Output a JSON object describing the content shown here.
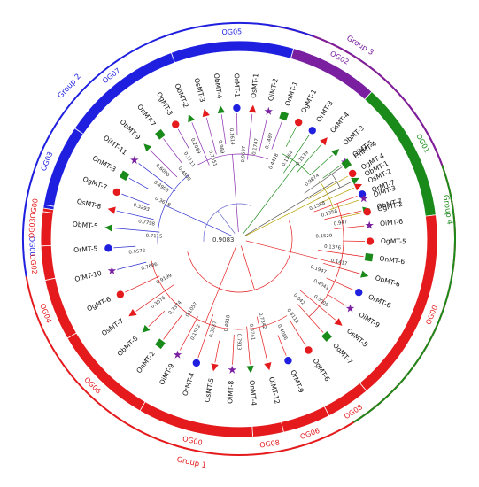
{
  "groups": [
    {
      "label": "Group 1",
      "color": "#e41a1c"
    },
    {
      "label": "Group 2",
      "color": "#1f1fe0"
    },
    {
      "label": "Group 3",
      "color": "#7a1fa0"
    },
    {
      "label": "Group 4",
      "color": "#1a8a1a"
    }
  ],
  "og_bands": [
    {
      "label": "OG00",
      "color": "#1f1fe0"
    },
    {
      "label": "OG03",
      "color": "#1f1fe0"
    },
    {
      "label": "OG07",
      "color": "#1f1fe0"
    },
    {
      "label": "OG05",
      "color": "#1f1fe0"
    },
    {
      "label": "OG02",
      "color": "#7a1fa0"
    },
    {
      "label": "OG01",
      "color": "#1a8a1a"
    },
    {
      "label": "OG00",
      "color": "#e41a1c"
    },
    {
      "label": "OG08",
      "color": "#e41a1c"
    },
    {
      "label": "OG06",
      "color": "#e41a1c"
    },
    {
      "label": "OG08",
      "color": "#e41a1c"
    },
    {
      "label": "OG00",
      "color": "#e41a1c"
    },
    {
      "label": "OG06",
      "color": "#e41a1c"
    },
    {
      "label": "OG04",
      "color": "#e41a1c"
    },
    {
      "label": "OG02",
      "color": "#e41a1c"
    },
    {
      "label": "OG03",
      "color": "#e41a1c"
    },
    {
      "label": "OG00",
      "color": "#e41a1c"
    }
  ],
  "leaves": [
    {
      "name": "OrMT-7",
      "symbol": "circle",
      "color": "#1f1fe0"
    },
    {
      "name": "ObMT-7",
      "symbol": "triangle",
      "color": "#1a8a1a"
    },
    {
      "name": "OiMT-6",
      "symbol": "star",
      "color": "#7a1fa0"
    },
    {
      "name": "OgMT-5",
      "symbol": "circle",
      "color": "#e41a1c"
    },
    {
      "name": "OnMT-6",
      "symbol": "square",
      "color": "#1a8a1a"
    },
    {
      "name": "ObMT-6",
      "symbol": "triangle",
      "color": "#1a8a1a"
    },
    {
      "name": "OrMT-6",
      "symbol": "circle",
      "color": "#1f1fe0"
    },
    {
      "name": "OiMT-9",
      "symbol": "star",
      "color": "#7a1fa0"
    },
    {
      "name": "OsMT-5",
      "symbol": "triangle",
      "color": "#e41a1c"
    },
    {
      "name": "OgMT-7",
      "symbol": "square",
      "color": "#1a8a1a"
    },
    {
      "name": "OgMT-6",
      "symbol": "circle",
      "color": "#e41a1c"
    },
    {
      "name": "OrMT-9",
      "symbol": "circle",
      "color": "#1f1fe0"
    },
    {
      "name": "OiMT-12",
      "symbol": "triangle",
      "color": "#e41a1c"
    },
    {
      "name": "OnMT-4",
      "symbol": "triangle",
      "color": "#1a8a1a"
    },
    {
      "name": "OiMT-8",
      "symbol": "star",
      "color": "#7a1fa0"
    },
    {
      "name": "OsMT-5",
      "symbol": "triangle",
      "color": "#e41a1c"
    },
    {
      "name": "OrMT-4",
      "symbol": "circle",
      "color": "#1f1fe0"
    },
    {
      "name": "OiMT-9",
      "symbol": "star",
      "color": "#7a1fa0"
    },
    {
      "name": "OnMT-2",
      "symbol": "square",
      "color": "#1a8a1a"
    },
    {
      "name": "ObMT-8",
      "symbol": "triangle",
      "color": "#1a8a1a"
    },
    {
      "name": "OsMT-7",
      "symbol": "triangle",
      "color": "#e41a1c"
    },
    {
      "name": "OgMT-6",
      "symbol": "circle",
      "color": "#e41a1c"
    },
    {
      "name": "OiMT-10",
      "symbol": "star",
      "color": "#7a1fa0"
    },
    {
      "name": "OrMT-5",
      "symbol": "circle",
      "color": "#1f1fe0"
    },
    {
      "name": "ObMT-5",
      "symbol": "triangle",
      "color": "#1a8a1a"
    },
    {
      "name": "OsMT-8",
      "symbol": "triangle",
      "color": "#e41a1c"
    },
    {
      "name": "OgMT-7",
      "symbol": "circle",
      "color": "#e41a1c"
    },
    {
      "name": "OnMT-3",
      "symbol": "square",
      "color": "#1a8a1a"
    },
    {
      "name": "OiMT-11",
      "symbol": "star",
      "color": "#7a1fa0"
    },
    {
      "name": "ObMT-9",
      "symbol": "triangle",
      "color": "#1a8a1a"
    },
    {
      "name": "OnMT-7",
      "symbol": "square",
      "color": "#1a8a1a"
    },
    {
      "name": "OgMT-3",
      "symbol": "circle",
      "color": "#e41a1c"
    },
    {
      "name": "ObMT-2",
      "symbol": "triangle",
      "color": "#1a8a1a"
    },
    {
      "name": "OsMT-3",
      "symbol": "triangle",
      "color": "#e41a1c"
    },
    {
      "name": "ObMT-4",
      "symbol": "triangle",
      "color": "#1a8a1a"
    },
    {
      "name": "OrMT-1",
      "symbol": "circle",
      "color": "#1f1fe0"
    },
    {
      "name": "OsMT-1",
      "symbol": "triangle",
      "color": "#e41a1c"
    },
    {
      "name": "OiMT-2",
      "symbol": "star",
      "color": "#7a1fa0"
    },
    {
      "name": "OnMT-1",
      "symbol": "square",
      "color": "#1a8a1a"
    },
    {
      "name": "OgMT-1",
      "symbol": "circle",
      "color": "#e41a1c"
    },
    {
      "name": "OrMT-3",
      "symbol": "circle",
      "color": "#1f1fe0"
    },
    {
      "name": "OsMT-4",
      "symbol": "triangle",
      "color": "#e41a1c"
    },
    {
      "name": "ObMT-3",
      "symbol": "triangle",
      "color": "#1a8a1a"
    },
    {
      "name": "OiMT-5",
      "symbol": "star",
      "color": "#7a1fa0"
    },
    {
      "name": "OgMT-4",
      "symbol": "circle",
      "color": "#e41a1c"
    },
    {
      "name": "OsMT-2",
      "symbol": "triangle",
      "color": "#e41a1c"
    },
    {
      "name": "OiMT-3",
      "symbol": "star",
      "color": "#7a1fa0"
    },
    {
      "name": "OgMT-2",
      "symbol": "circle",
      "color": "#e41a1c"
    },
    {
      "name": "OnMT-4",
      "symbol": "square",
      "color": "#1a8a1a"
    },
    {
      "name": "ObMT-1",
      "symbol": "triangle",
      "color": "#1a8a1a"
    }
  ],
  "bootstrap_values": [
    "0.1388",
    "0.1358",
    "0.947",
    "0.1529",
    "0.1376",
    "0.1417",
    "0.1947",
    "0.4041",
    "0.5005",
    "0.642",
    "0.8112",
    "0.4086",
    "0.7342",
    "0.3741",
    "0.7913",
    "0.4918",
    "0.3037",
    "0.1512",
    "0.1057",
    "0.3374",
    "0.3076",
    "0.9199",
    "0.7606",
    "0.9572",
    "0.7115",
    "0.7798",
    "0.3293",
    "0.3618",
    "0.4903",
    "0.6006",
    "0.4508",
    "0.1111",
    "0.2089",
    "0.7651",
    "0.989",
    "0.1614",
    "0.9697",
    "0.1747",
    "0.1487",
    "0.4428",
    "0.1264",
    "0.1539",
    "0.9083",
    "0.9874"
  ]
}
